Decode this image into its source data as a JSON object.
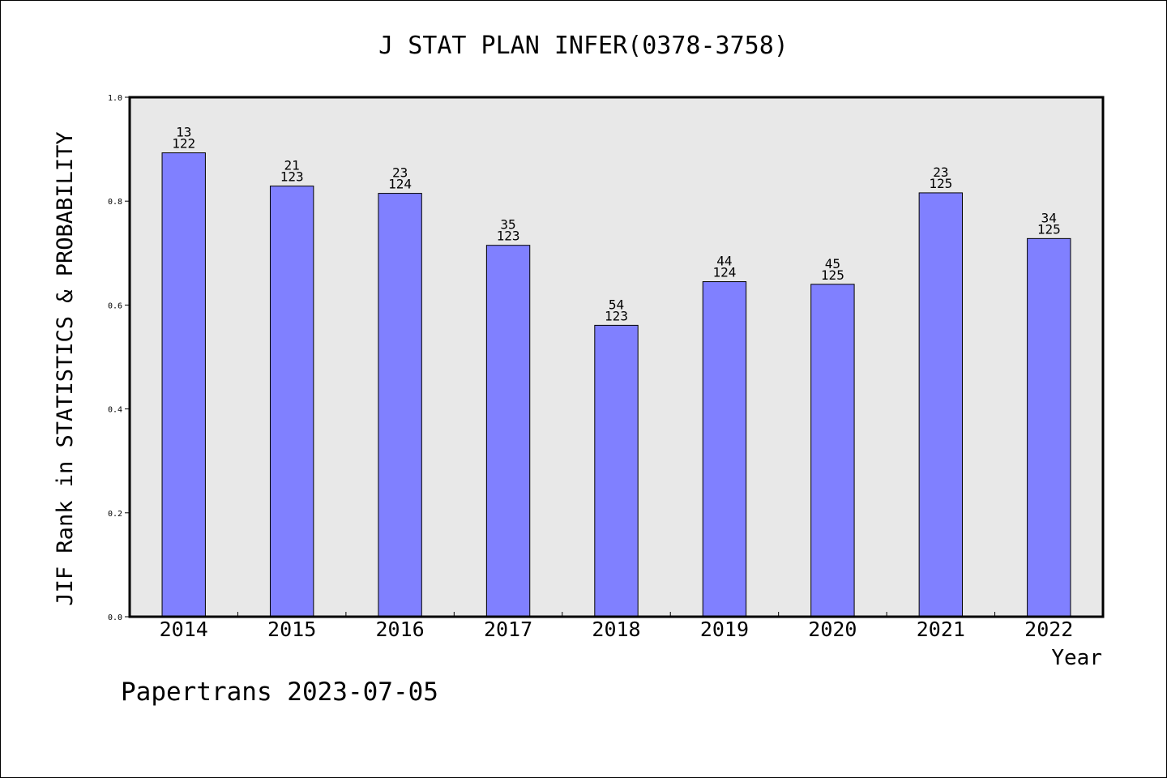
{
  "chart_data": {
    "type": "bar",
    "title": "J STAT PLAN INFER(0378-3758)",
    "xlabel": "Year",
    "ylabel": "JIF Rank in STATISTICS & PROBABILITY",
    "ylim": [
      0,
      1.0
    ],
    "yticks": [
      "0.0",
      "0.2",
      "0.4",
      "0.6",
      "0.8",
      "1.0"
    ],
    "grid": false,
    "categories": [
      "2014",
      "2015",
      "2016",
      "2017",
      "2018",
      "2019",
      "2020",
      "2021",
      "2022"
    ],
    "values": [
      0.893,
      0.829,
      0.815,
      0.715,
      0.561,
      0.645,
      0.64,
      0.816,
      0.728
    ],
    "rank_labels": [
      {
        "rank": "13",
        "total": "122"
      },
      {
        "rank": "21",
        "total": "123"
      },
      {
        "rank": "23",
        "total": "124"
      },
      {
        "rank": "35",
        "total": "123"
      },
      {
        "rank": "54",
        "total": "123"
      },
      {
        "rank": "44",
        "total": "124"
      },
      {
        "rank": "45",
        "total": "125"
      },
      {
        "rank": "23",
        "total": "125"
      },
      {
        "rank": "34",
        "total": "125"
      }
    ],
    "bar_color": "#8080ff",
    "plot_background": "#e8e8e8"
  },
  "footer": {
    "credit": "Papertrans 2023-07-05"
  }
}
